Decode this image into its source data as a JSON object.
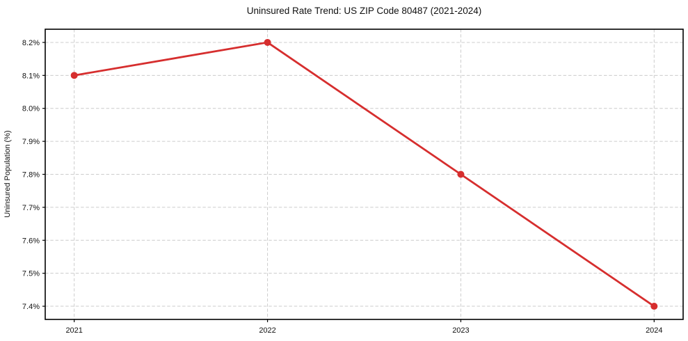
{
  "chart": {
    "title": "Uninsured Rate Trend: US ZIP Code 80487 (2021-2024)",
    "ylabel": "Uninsured Population (%)"
  },
  "chart_data": {
    "type": "line",
    "title": "Uninsured Rate Trend: US ZIP Code 80487 (2021-2024)",
    "xlabel": "",
    "ylabel": "Uninsured Population (%)",
    "x": [
      2021,
      2022,
      2023,
      2024
    ],
    "series": [
      {
        "name": "Uninsured rate",
        "values": [
          8.1,
          8.2,
          7.8,
          7.4
        ]
      }
    ],
    "x_ticks": [
      2021,
      2022,
      2023,
      2024
    ],
    "x_tick_labels": [
      "2021",
      "2022",
      "2023",
      "2024"
    ],
    "y_ticks": [
      7.4,
      7.5,
      7.6,
      7.7,
      7.8,
      7.9,
      8.0,
      8.1,
      8.2
    ],
    "y_tick_labels": [
      "7.4%",
      "7.5%",
      "7.6%",
      "7.7%",
      "7.8%",
      "7.9%",
      "8.0%",
      "8.1%",
      "8.2%"
    ],
    "xlim": [
      2020.85,
      2024.15
    ],
    "ylim": [
      7.36,
      8.24
    ],
    "grid": true,
    "legend": "none",
    "colors": {
      "line": "#d62e2e",
      "marker": "#d62e2e",
      "grid": "#cccccc",
      "spine": "#000000",
      "text": "#111111",
      "background": "#ffffff"
    },
    "marker": "circle"
  }
}
